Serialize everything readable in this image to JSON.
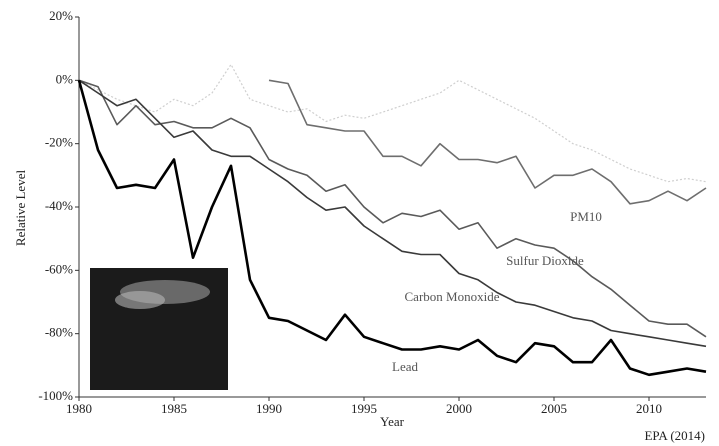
{
  "chart_data": {
    "type": "line",
    "xlabel": "Year",
    "ylabel": "Relative Level",
    "source": "EPA (2014)",
    "xlim": [
      1980,
      2013
    ],
    "xticks": [
      1980,
      1985,
      1990,
      1995,
      2000,
      2005,
      2010
    ],
    "ylim": [
      -100,
      20
    ],
    "yticks": [
      {
        "value": -100,
        "label": "-100%"
      },
      {
        "value": -80,
        "label": "-80%"
      },
      {
        "value": -60,
        "label": "-60%"
      },
      {
        "value": -40,
        "label": "-40%"
      },
      {
        "value": -20,
        "label": "-20%"
      },
      {
        "value": 0,
        "label": "0%"
      },
      {
        "value": 20,
        "label": "20%"
      }
    ],
    "series": [
      {
        "color": "#cfcfcf",
        "x": [
          1980,
          1981,
          1982,
          1983,
          1984,
          1985,
          1986,
          1987,
          1988,
          1989,
          1990,
          1991,
          1992,
          1993,
          1994,
          1995,
          1996,
          1997,
          1998,
          1999,
          2000,
          2001,
          2002,
          2003,
          2004,
          2005,
          2006,
          2007,
          2008,
          2009,
          2010,
          2011,
          2012,
          2013
        ],
        "values": [
          0,
          -3,
          -6,
          -8,
          -10,
          -6,
          -8,
          -4,
          5,
          -6,
          -8,
          -10,
          -9,
          -13,
          -11,
          -12,
          -10,
          -8,
          -6,
          -4,
          0,
          -3,
          -6,
          -9,
          -12,
          -16,
          -20,
          -22,
          -25,
          -28,
          -30,
          -32,
          -31,
          -32
        ]
      },
      {
        "name": "PM10",
        "color": "#6e6e6e",
        "x": [
          1990,
          1991,
          1992,
          1993,
          1994,
          1995,
          1996,
          1997,
          1998,
          1999,
          2000,
          2001,
          2002,
          2003,
          2004,
          2005,
          2006,
          2007,
          2008,
          2009,
          2010,
          2011,
          2012,
          2013
        ],
        "values": [
          0,
          -1,
          -14,
          -15,
          -16,
          -16,
          -24,
          -24,
          -27,
          -20,
          -25,
          -25,
          -26,
          -24,
          -34,
          -30,
          -30,
          -28,
          -32,
          -39,
          -38,
          -35,
          -38,
          -34
        ]
      },
      {
        "name": "Sulfur Dioxide",
        "color": "#5a5a5a",
        "x": [
          1980,
          1981,
          1982,
          1983,
          1984,
          1985,
          1986,
          1987,
          1988,
          1989,
          1990,
          1991,
          1992,
          1993,
          1994,
          1995,
          1996,
          1997,
          1998,
          1999,
          2000,
          2001,
          2002,
          2003,
          2004,
          2005,
          2006,
          2007,
          2008,
          2009,
          2010,
          2011,
          2012,
          2013
        ],
        "values": [
          0,
          -2,
          -14,
          -8,
          -14,
          -13,
          -15,
          -15,
          -12,
          -15,
          -25,
          -28,
          -30,
          -35,
          -33,
          -40,
          -45,
          -42,
          -43,
          -41,
          -47,
          -45,
          -53,
          -50,
          -52,
          -53,
          -57,
          -62,
          -66,
          -71,
          -76,
          -77,
          -77,
          -81
        ]
      },
      {
        "name": "Carbon Monoxide",
        "color": "#3a3a3a",
        "x": [
          1980,
          1981,
          1982,
          1983,
          1984,
          1985,
          1986,
          1987,
          1988,
          1989,
          1990,
          1991,
          1992,
          1993,
          1994,
          1995,
          1996,
          1997,
          1998,
          1999,
          2000,
          2001,
          2002,
          2003,
          2004,
          2005,
          2006,
          2007,
          2008,
          2009,
          2010,
          2011,
          2012,
          2013
        ],
        "values": [
          0,
          -4,
          -8,
          -6,
          -12,
          -18,
          -16,
          -22,
          -24,
          -24,
          -28,
          -32,
          -37,
          -41,
          -40,
          -46,
          -50,
          -54,
          -55,
          -55,
          -61,
          -63,
          -67,
          -70,
          -71,
          -73,
          -75,
          -76,
          -79,
          -80,
          -81,
          -82,
          -83,
          -84
        ]
      },
      {
        "name": "Lead",
        "color": "#000000",
        "x": [
          1980,
          1981,
          1982,
          1983,
          1984,
          1985,
          1986,
          1987,
          1988,
          1989,
          1990,
          1991,
          1992,
          1993,
          1994,
          1995,
          1996,
          1997,
          1998,
          1999,
          2000,
          2001,
          2002,
          2003,
          2004,
          2005,
          2006,
          2007,
          2008,
          2009,
          2010,
          2011,
          2012,
          2013
        ],
        "values": [
          0,
          -22,
          -34,
          -33,
          -34,
          -25,
          -56,
          -40,
          -27,
          -63,
          -75,
          -76,
          -79,
          -82,
          -74,
          -81,
          -83,
          -85,
          -85,
          -84,
          -85,
          -82,
          -87,
          -89,
          -83,
          -84,
          -89,
          -89,
          -82,
          -91,
          -93,
          -92,
          -91,
          -92
        ]
      }
    ]
  }
}
